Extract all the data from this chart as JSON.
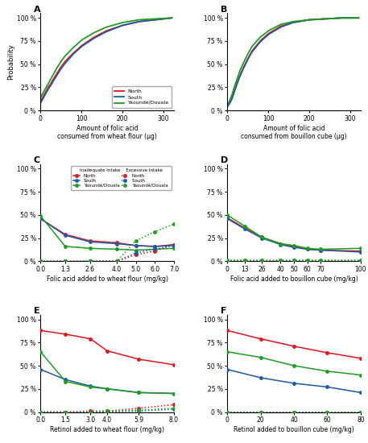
{
  "colors": {
    "north": "#e8141c",
    "south": "#2059a8",
    "yaounde": "#1e9e1e"
  },
  "panel_A": {
    "label": "A",
    "xlabel": "Amount of folic acid\nconsumed from wheat flour (μg)",
    "ylabel": "Probability",
    "xlim": [
      0,
      325
    ],
    "ylim": [
      0,
      105
    ],
    "yticks": [
      0,
      25,
      50,
      75,
      100
    ],
    "xticks": [
      0,
      100,
      200,
      300
    ],
    "north_x": [
      0,
      5,
      10,
      15,
      20,
      25,
      30,
      40,
      50,
      60,
      80,
      100,
      130,
      160,
      200,
      240,
      280,
      320
    ],
    "north_y": [
      10,
      14,
      18,
      22,
      26,
      29,
      33,
      40,
      47,
      53,
      62,
      70,
      79,
      86,
      92,
      96,
      98,
      100
    ],
    "south_x": [
      0,
      5,
      10,
      15,
      20,
      25,
      30,
      40,
      50,
      60,
      80,
      100,
      130,
      160,
      200,
      240,
      280,
      320
    ],
    "south_y": [
      8,
      12,
      16,
      20,
      24,
      27,
      31,
      38,
      45,
      51,
      61,
      69,
      78,
      85,
      92,
      96,
      98,
      100
    ],
    "yaounde_x": [
      0,
      5,
      10,
      15,
      20,
      25,
      30,
      40,
      50,
      60,
      80,
      100,
      130,
      160,
      200,
      240,
      280,
      320
    ],
    "yaounde_y": [
      14,
      18,
      22,
      26,
      30,
      34,
      38,
      46,
      53,
      59,
      68,
      76,
      84,
      90,
      95,
      98,
      99,
      100
    ],
    "legend_north": "North",
    "legend_south": "South",
    "legend_yaounde": "Yaoundé/Douala"
  },
  "panel_B": {
    "label": "B",
    "xlabel": "Amount of folic acid\nconsumed from bouillon cube (μg)",
    "ylabel": "Probability",
    "xlim": [
      0,
      325
    ],
    "ylim": [
      0,
      105
    ],
    "yticks": [
      0,
      25,
      50,
      75,
      100
    ],
    "xticks": [
      0,
      100,
      200,
      300
    ],
    "north_x": [
      0,
      5,
      10,
      15,
      20,
      30,
      40,
      50,
      60,
      80,
      100,
      130,
      160,
      200,
      240,
      280,
      320
    ],
    "north_y": [
      5,
      8,
      12,
      18,
      25,
      37,
      47,
      56,
      64,
      75,
      83,
      91,
      95,
      98,
      99,
      100,
      100
    ],
    "south_x": [
      0,
      5,
      10,
      15,
      20,
      30,
      40,
      50,
      60,
      80,
      100,
      130,
      160,
      200,
      240,
      280,
      320
    ],
    "south_y": [
      4,
      7,
      11,
      17,
      24,
      36,
      46,
      55,
      63,
      74,
      82,
      90,
      95,
      98,
      99,
      100,
      100
    ],
    "yaounde_x": [
      0,
      5,
      10,
      15,
      20,
      30,
      40,
      50,
      60,
      80,
      100,
      130,
      160,
      200,
      240,
      280,
      320
    ],
    "yaounde_y": [
      6,
      10,
      15,
      22,
      29,
      42,
      52,
      61,
      69,
      79,
      86,
      93,
      96,
      98,
      99,
      100,
      100
    ]
  },
  "panel_C": {
    "label": "C",
    "xlabel": "Folic acid added to wheat flour (mg/kg)",
    "xlim": [
      0,
      7.0
    ],
    "ylim": [
      0,
      105
    ],
    "yticks": [
      0,
      25,
      50,
      75,
      100
    ],
    "xticks": [
      0.0,
      1.3,
      2.6,
      4.0,
      5.0,
      6.0,
      7.0
    ],
    "inad_north_x": [
      0,
      1.3,
      2.6,
      4.0,
      5.0,
      6.0,
      7.0
    ],
    "inad_north_y": [
      46,
      29,
      22,
      20,
      17,
      16,
      18
    ],
    "inad_south_x": [
      0,
      1.3,
      2.6,
      4.0,
      5.0,
      6.0,
      7.0
    ],
    "inad_south_y": [
      46,
      28,
      21,
      19,
      17,
      16,
      17
    ],
    "inad_yaounde_x": [
      0,
      1.3,
      2.6,
      4.0,
      5.0,
      6.0,
      7.0
    ],
    "inad_yaounde_y": [
      49,
      16,
      14,
      13,
      12,
      13,
      14
    ],
    "exc_north_x": [
      0,
      1.3,
      2.6,
      4.0,
      5.0,
      6.0,
      7.0
    ],
    "exc_north_y": [
      0,
      0,
      0,
      0,
      7,
      11,
      18
    ],
    "exc_south_x": [
      0,
      1.3,
      2.6,
      4.0,
      5.0,
      6.0,
      7.0
    ],
    "exc_south_y": [
      0,
      0,
      0,
      0,
      9,
      13,
      17
    ],
    "exc_yaounde_x": [
      0,
      1.3,
      2.6,
      4.0,
      5.0,
      6.0,
      7.0
    ],
    "exc_yaounde_y": [
      0,
      0,
      0,
      0,
      22,
      32,
      40
    ]
  },
  "panel_D": {
    "label": "D",
    "xlabel": "Folic acid added to bouillon cube (mg/kg)",
    "xlim": [
      0,
      100
    ],
    "ylim": [
      0,
      105
    ],
    "yticks": [
      0,
      25,
      50,
      75,
      100
    ],
    "xticks": [
      0,
      13,
      26,
      40,
      50,
      60,
      70,
      100
    ],
    "inad_north_x": [
      0,
      13,
      26,
      40,
      50,
      60,
      70,
      100
    ],
    "inad_north_y": [
      47,
      36,
      26,
      19,
      16,
      13,
      12,
      11
    ],
    "inad_south_x": [
      0,
      13,
      26,
      40,
      50,
      60,
      70,
      100
    ],
    "inad_south_y": [
      46,
      35,
      25,
      18,
      15,
      13,
      12,
      10
    ],
    "inad_yaounde_x": [
      0,
      13,
      26,
      40,
      50,
      60,
      70,
      100
    ],
    "inad_yaounde_y": [
      50,
      38,
      26,
      19,
      17,
      14,
      13,
      14
    ],
    "exc_north_x": [
      0,
      13,
      26,
      40,
      50,
      60,
      70,
      100
    ],
    "exc_north_y": [
      0,
      0,
      0,
      0,
      0,
      0,
      0,
      0
    ],
    "exc_south_x": [
      0,
      13,
      26,
      40,
      50,
      60,
      70,
      100
    ],
    "exc_south_y": [
      0,
      0,
      0,
      0,
      0,
      0,
      0,
      0
    ],
    "exc_yaounde_x": [
      0,
      13,
      26,
      40,
      50,
      60,
      70,
      100
    ],
    "exc_yaounde_y": [
      1,
      1,
      1,
      1,
      1,
      1,
      1,
      1
    ]
  },
  "panel_E": {
    "label": "E",
    "xlabel": "Retinol added to wheat flour (mg/kg)",
    "xlim": [
      0,
      8.0
    ],
    "ylim": [
      0,
      105
    ],
    "yticks": [
      0,
      25,
      50,
      75,
      100
    ],
    "xticks": [
      0.0,
      1.5,
      3.0,
      4.0,
      5.9,
      8.0
    ],
    "inad_north_x": [
      0,
      1.5,
      3.0,
      4.0,
      5.9,
      8.0
    ],
    "inad_north_y": [
      88,
      84,
      79,
      66,
      57,
      51
    ],
    "inad_south_x": [
      0,
      1.5,
      3.0,
      4.0,
      5.9,
      8.0
    ],
    "inad_south_y": [
      46,
      35,
      28,
      25,
      21,
      20
    ],
    "inad_yaounde_x": [
      0,
      1.5,
      3.0,
      4.0,
      5.9,
      8.0
    ],
    "inad_yaounde_y": [
      65,
      33,
      27,
      25,
      21,
      20
    ],
    "exc_north_x": [
      0,
      1.5,
      3.0,
      4.0,
      5.9,
      8.0
    ],
    "exc_north_y": [
      0,
      0,
      1,
      1,
      4,
      8
    ],
    "exc_south_x": [
      0,
      1.5,
      3.0,
      4.0,
      5.9,
      8.0
    ],
    "exc_south_y": [
      0,
      0,
      0,
      0,
      1,
      3
    ],
    "exc_yaounde_x": [
      0,
      1.5,
      3.0,
      4.0,
      5.9,
      8.0
    ],
    "exc_yaounde_y": [
      0,
      0,
      0,
      1,
      2,
      4
    ]
  },
  "panel_F": {
    "label": "F",
    "xlabel": "Retinol added to bouillon cube (mg/kg)",
    "xlim": [
      0,
      80
    ],
    "ylim": [
      0,
      105
    ],
    "yticks": [
      0,
      25,
      50,
      75,
      100
    ],
    "xticks": [
      0,
      20,
      40,
      60,
      80
    ],
    "inad_north_x": [
      0,
      20,
      40,
      60,
      80
    ],
    "inad_north_y": [
      88,
      79,
      71,
      64,
      58
    ],
    "inad_south_x": [
      0,
      20,
      40,
      60,
      80
    ],
    "inad_south_y": [
      46,
      37,
      31,
      27,
      21
    ],
    "inad_yaounde_x": [
      0,
      20,
      40,
      60,
      80
    ],
    "inad_yaounde_y": [
      65,
      59,
      50,
      44,
      40
    ],
    "exc_north_x": [
      0,
      20,
      40,
      60,
      80
    ],
    "exc_north_y": [
      0,
      0,
      0,
      0,
      0
    ],
    "exc_south_x": [
      0,
      20,
      40,
      60,
      80
    ],
    "exc_south_y": [
      0,
      0,
      0,
      0,
      0
    ],
    "exc_yaounde_x": [
      0,
      20,
      40,
      60,
      80
    ],
    "exc_yaounde_y": [
      0,
      0,
      0,
      0,
      0
    ]
  }
}
